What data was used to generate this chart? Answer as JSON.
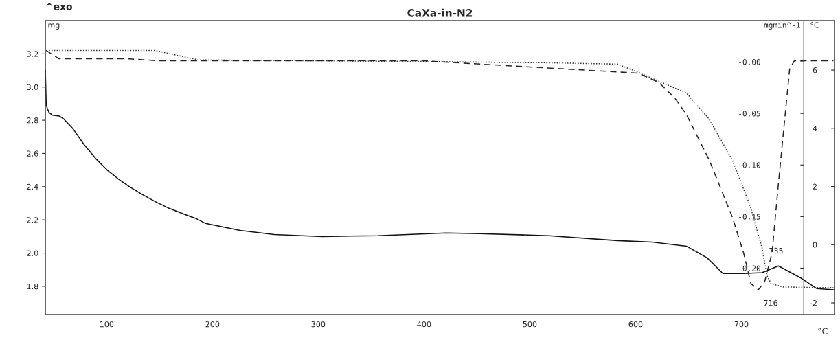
{
  "chart_data": {
    "type": "line",
    "title": "CaXa-in-N2",
    "xlabel": "°C",
    "ylabel": "mg",
    "y2label": "mgmin^-1",
    "y3label": "°C",
    "annotations": [
      "^exo",
      "716",
      "735"
    ],
    "xlim": [
      42,
      788
    ],
    "xticks": [
      100,
      200,
      300,
      400,
      500,
      600,
      700
    ],
    "ylim": [
      1.63,
      3.4
    ],
    "yticks": [
      1.8,
      {
        "value": 2,
        "label": "2.0"
      },
      2.2,
      2.4,
      2.6,
      2.8,
      {
        "value": 3,
        "label": "3.0"
      },
      3.2
    ],
    "y2lim": [
      -0.245,
      0.04
    ],
    "y2ticks": [
      {
        "value": 0,
        "label": "-0.00"
      },
      {
        "value": -0.05,
        "label": "-0.05"
      },
      {
        "value": -0.1,
        "label": "-0.10"
      },
      {
        "value": -0.15,
        "label": "-0.15"
      },
      {
        "value": -0.2,
        "label": "-0.20"
      }
    ],
    "y3lim": [
      -2.4,
      7.7
    ],
    "y3ticks": [
      {
        "value": -2,
        "label": "-2"
      },
      0,
      2,
      4,
      6
    ],
    "grid": false,
    "legend": false,
    "series": [
      {
        "line_style": "dotted",
        "color": "#333333",
        "x": [
          42.9,
          146,
          187,
          388,
          518,
          583,
          602.6,
          648,
          669.5,
          691.6,
          708.4,
          719.5,
          724,
          728,
          739,
          778,
          787
        ],
        "values": [
          3.22,
          3.22,
          3.163,
          3.154,
          3.146,
          3.138,
          3.088,
          2.964,
          2.807,
          2.558,
          2.281,
          2.032,
          1.867,
          1.817,
          1.796,
          1.792,
          1.792
        ]
      },
      {
        "line_style": "dashed",
        "axis": "y2",
        "color": "#222222",
        "x": [
          42.9,
          55,
          120,
          150,
          400,
          602.6,
          622,
          637,
          648,
          669.5,
          691.6,
          702,
          709,
          716,
          722,
          729,
          735,
          741,
          745.6,
          750,
          787
        ],
        "values": [
          0.011,
          0.003,
          0.003,
          0.001,
          0.001,
          -0.011,
          -0.02,
          -0.035,
          -0.051,
          -0.095,
          -0.151,
          -0.185,
          -0.215,
          -0.221,
          -0.213,
          -0.185,
          -0.118,
          -0.055,
          -0.007,
          0.001,
          0.001
        ]
      },
      {
        "line_style": "solid",
        "axis": "y3",
        "color": "#111111",
        "x": [
          42,
          42.9,
          45.5,
          48.7,
          55.2,
          59.1,
          68.2,
          78.6,
          89.6,
          100.6,
          111,
          122,
          133,
          146,
          159,
          176,
          185,
          193.5,
          226,
          258.4,
          304,
          356,
          421,
          453,
          518,
          583,
          615.6,
          648,
          667.5,
          682.5,
          702,
          719.5,
          735,
          756.5,
          771.4,
          787.7
        ],
        "values": [
          6.0,
          4.78,
          4.54,
          4.45,
          4.42,
          4.33,
          3.98,
          3.44,
          2.96,
          2.56,
          2.26,
          1.98,
          1.74,
          1.48,
          1.25,
          1.01,
          0.89,
          0.73,
          0.49,
          0.35,
          0.28,
          0.31,
          0.4,
          0.38,
          0.31,
          0.14,
          0.09,
          -0.05,
          -0.45,
          -0.99,
          -0.99,
          -0.96,
          -0.73,
          -1.15,
          -1.51,
          -1.55
        ]
      }
    ]
  }
}
